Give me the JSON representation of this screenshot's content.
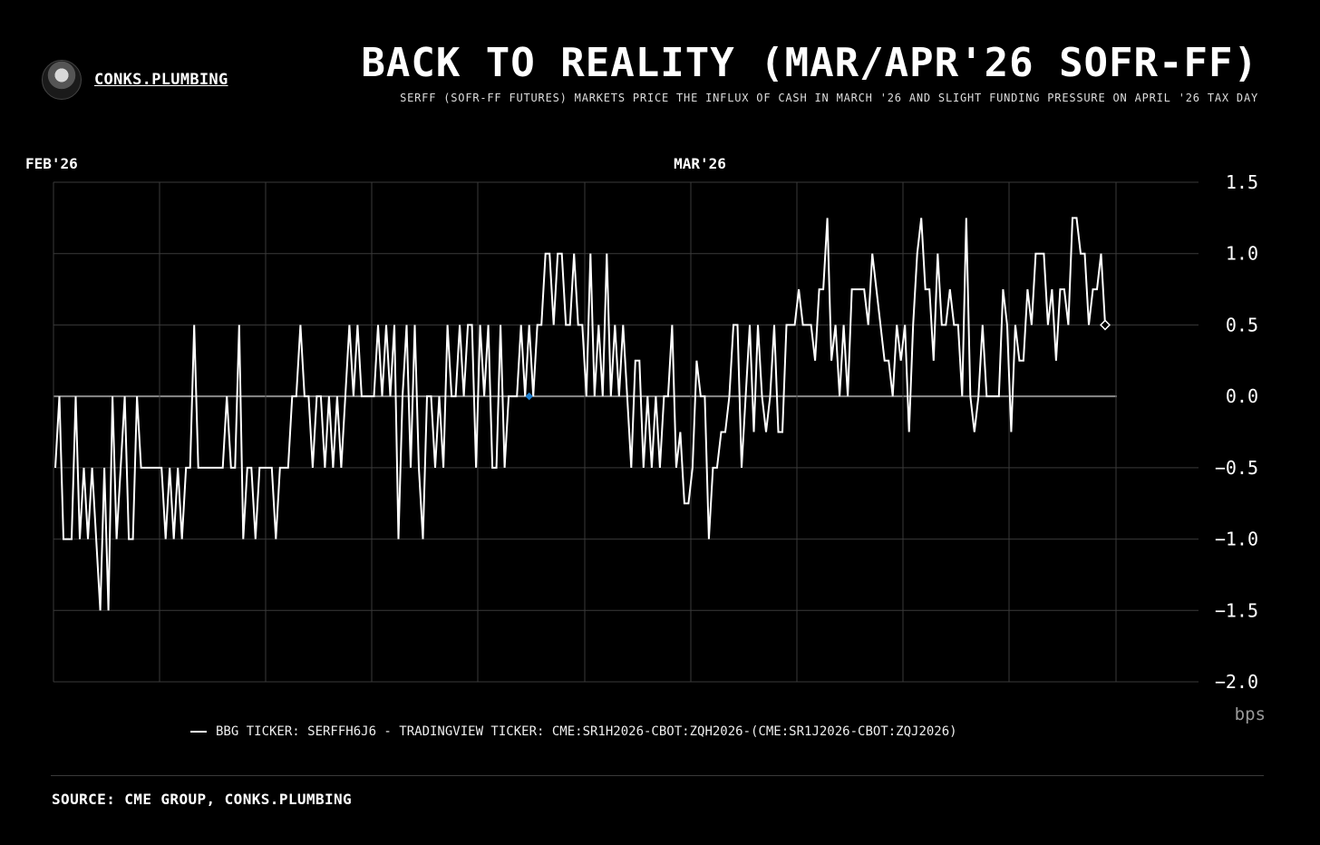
{
  "brand": {
    "name": "CONKS.PLUMBING"
  },
  "header": {
    "title": "BACK TO REALITY (MAR/APR'26 SOFR-FF)",
    "subtitle": "SERFF (SOFR-FF FUTURES) MARKETS PRICE THE INFLUX OF CASH IN MARCH '26 AND SLIGHT FUNDING PRESSURE ON APRIL '26 TAX DAY"
  },
  "source": "SOURCE: CME GROUP, CONKS.PLUMBING",
  "colors": {
    "background": "#000000",
    "line": "#ffffff",
    "grid": "#3a3a3a",
    "zero_line": "#8a8a8a",
    "marker": "#1e7fd0"
  },
  "chart_data": {
    "type": "line",
    "title": "BACK TO REALITY (MAR/APR'26 SOFR-FF)",
    "ylabel": "bps",
    "ylim": [
      -2.0,
      1.5
    ],
    "yticks": [
      "1.5",
      "1.0",
      "0.5",
      "0.0",
      "−0.5",
      "−1.0",
      "−1.5",
      "−2.0"
    ],
    "x_tick_labels": [
      "FEB'26",
      "MAR'26"
    ],
    "grid": true,
    "legend": "bottom",
    "series": [
      {
        "name": "BBG TICKER: SERFFH6J6 - TRADINGVIEW TICKER: CME:SR1H2026-CBOT:ZQH2026-(CME:SR1J2026-CBOT:ZQJ2026)",
        "values": [
          -0.5,
          0,
          -1,
          -1,
          -1,
          0,
          -1,
          -0.5,
          -1,
          -0.5,
          -1,
          -1.5,
          -0.5,
          -1.5,
          0,
          -1,
          -0.5,
          0,
          -1,
          -1,
          0,
          -0.5,
          -0.5,
          -0.5,
          -0.5,
          -0.5,
          -0.5,
          -1,
          -0.5,
          -1,
          -0.5,
          -1,
          -0.5,
          -0.5,
          0.5,
          -0.5,
          -0.5,
          -0.5,
          -0.5,
          -0.5,
          -0.5,
          -0.5,
          0,
          -0.5,
          -0.5,
          0.5,
          -1,
          -0.5,
          -0.5,
          -1,
          -0.5,
          -0.5,
          -0.5,
          -0.5,
          -1,
          -0.5,
          -0.5,
          -0.5,
          0,
          0,
          0.5,
          0,
          0,
          -0.5,
          0,
          0,
          -0.5,
          0,
          -0.5,
          0,
          -0.5,
          0,
          0.5,
          0,
          0.5,
          0,
          0,
          0,
          0,
          0.5,
          0,
          0.5,
          0,
          0.5,
          -1,
          0,
          0.5,
          -0.5,
          0.5,
          -0.5,
          -1,
          0,
          0,
          -0.5,
          0,
          -0.5,
          0.5,
          0,
          0,
          0.5,
          0,
          0.5,
          0.5,
          -0.5,
          0.5,
          0,
          0.5,
          -0.5,
          -0.5,
          0.5,
          -0.5,
          0,
          0,
          0,
          0.5,
          0,
          0.5,
          0,
          0.5,
          0.5,
          1,
          1,
          0.5,
          1,
          1,
          0.5,
          0.5,
          1,
          0.5,
          0.5,
          0,
          1,
          0,
          0.5,
          0,
          1,
          0,
          0.5,
          0,
          0.5,
          0,
          -0.5,
          0.25,
          0.25,
          -0.5,
          0,
          -0.5,
          0,
          -0.5,
          0,
          0,
          0.5,
          -0.5,
          -0.25,
          -0.75,
          -0.75,
          -0.5,
          0.25,
          0,
          0,
          -1,
          -0.5,
          -0.5,
          -0.25,
          -0.25,
          0,
          0.5,
          0.5,
          -0.5,
          0,
          0.5,
          -0.25,
          0.5,
          0,
          -0.25,
          0,
          0.5,
          -0.25,
          -0.25,
          0.5,
          0.5,
          0.5,
          0.75,
          0.5,
          0.5,
          0.5,
          0.25,
          0.75,
          0.75,
          1.25,
          0.25,
          0.5,
          0,
          0.5,
          0,
          0.75,
          0.75,
          0.75,
          0.75,
          0.5,
          1,
          0.75,
          0.5,
          0.25,
          0.25,
          0,
          0.5,
          0.25,
          0.5,
          -0.25,
          0.5,
          1,
          1.25,
          0.75,
          0.75,
          0.25,
          1,
          0.5,
          0.5,
          0.75,
          0.5,
          0.5,
          0,
          1.25,
          0,
          -0.25,
          0,
          0.5,
          0,
          0,
          0,
          0,
          0.75,
          0.5,
          -0.25,
          0.5,
          0.25,
          0.25,
          0.75,
          0.5,
          1,
          1,
          1,
          0.5,
          0.75,
          0.25,
          0.75,
          0.75,
          0.5,
          1.25,
          1.25,
          1,
          1,
          0.5,
          0.75,
          0.75,
          1,
          0.5
        ]
      }
    ]
  }
}
